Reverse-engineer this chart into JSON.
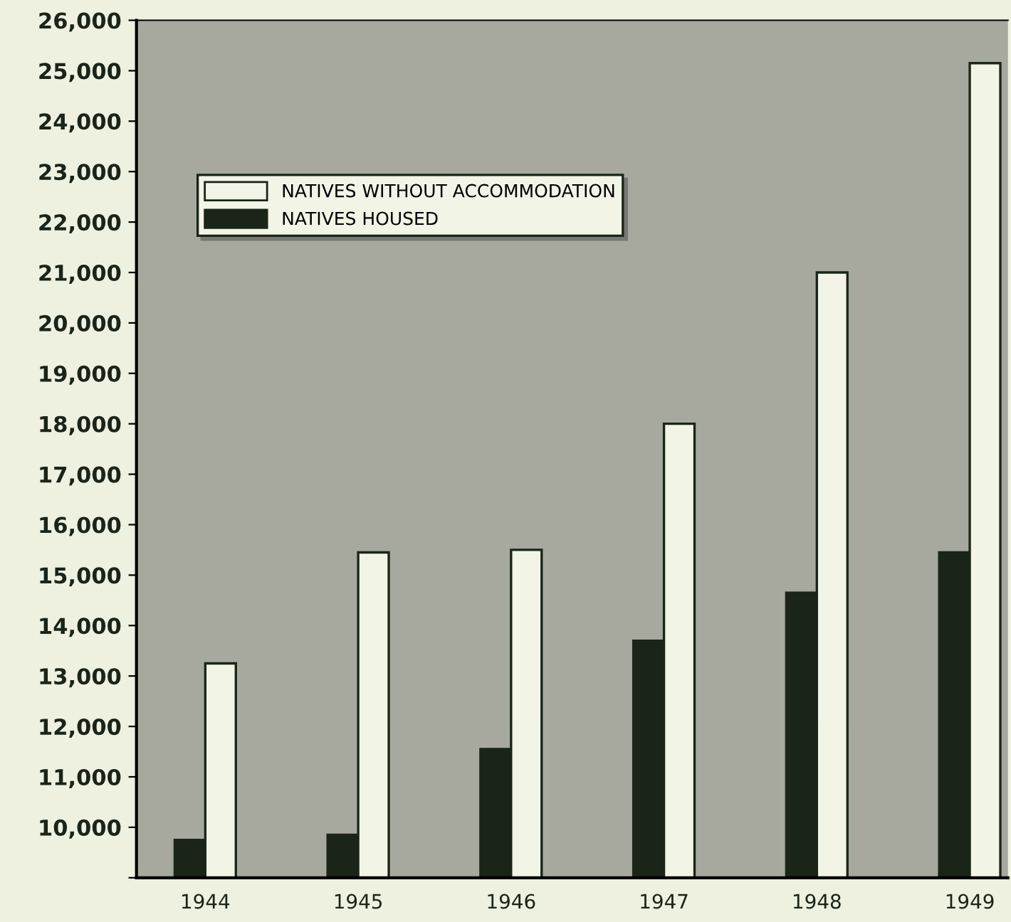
{
  "chart_data": {
    "type": "bar",
    "categories": [
      "1944",
      "1945",
      "1946",
      "1947",
      "1948",
      "1949"
    ],
    "series": [
      {
        "name": "NATIVES HOUSED",
        "color": "#1a2418",
        "values": [
          9750,
          9850,
          11550,
          13700,
          14650,
          15450
        ]
      },
      {
        "name": "NATIVES WITHOUT ACCOMMODATION",
        "color": "#f2f4e6",
        "values": [
          13250,
          15450,
          15500,
          18000,
          21000,
          25150
        ]
      }
    ],
    "ylim": [
      9000,
      26000
    ],
    "yticks": [
      {
        "value": 9000,
        "label": null
      },
      {
        "value": 10000,
        "label": "10,000"
      },
      {
        "value": 11000,
        "label": "11,000"
      },
      {
        "value": 12000,
        "label": "12,000"
      },
      {
        "value": 13000,
        "label": "13,000"
      },
      {
        "value": 14000,
        "label": "14,000"
      },
      {
        "value": 15000,
        "label": "15,000"
      },
      {
        "value": 16000,
        "label": "16,000"
      },
      {
        "value": 17000,
        "label": "17,000"
      },
      {
        "value": 18000,
        "label": "18,000"
      },
      {
        "value": 19000,
        "label": "19,000"
      },
      {
        "value": 20000,
        "label": "20,000"
      },
      {
        "value": 21000,
        "label": "21,000"
      },
      {
        "value": 22000,
        "label": "22,000"
      },
      {
        "value": 23000,
        "label": "23,000"
      },
      {
        "value": 24000,
        "label": "24,000"
      },
      {
        "value": 25000,
        "label": "25,000"
      },
      {
        "value": 26000,
        "label": "26,000"
      }
    ],
    "legend": "top left",
    "grid": false
  }
}
